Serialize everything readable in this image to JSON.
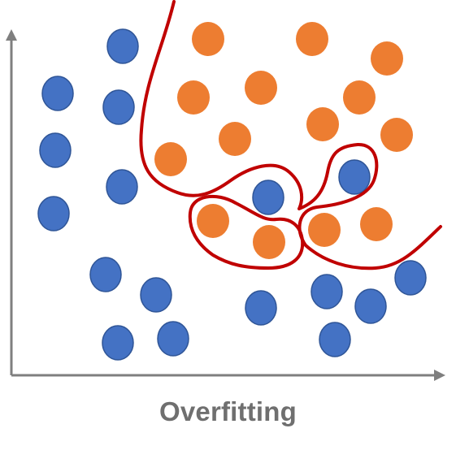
{
  "caption": "Overfitting",
  "colors": {
    "class_a": "#4472c4",
    "class_a_stroke": "#2f5597",
    "class_b": "#ed7d31",
    "boundary": "#c00000",
    "axis": "#7f7f7f",
    "caption": "#6f6f6f"
  }
}
